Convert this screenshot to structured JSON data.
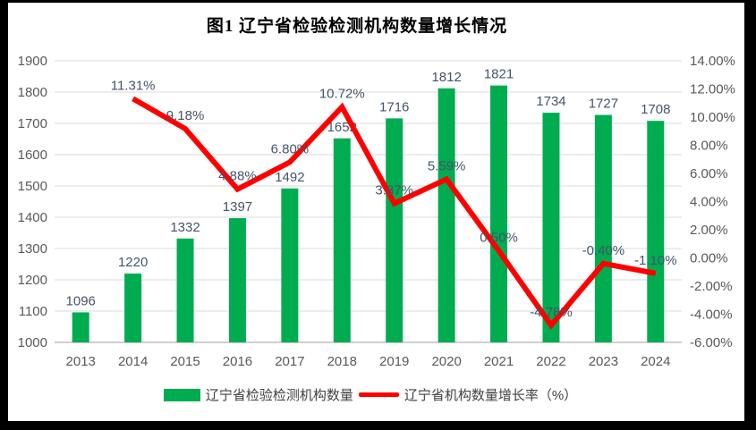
{
  "chart": {
    "title": "图1 辽宁省检验检测机构数量增长情况",
    "legend": [
      {
        "type": "bar",
        "label": "辽宁省检验检测机构数量",
        "color": "#00AC50"
      },
      {
        "type": "line",
        "label": "辽宁省机构数量增长率（%）",
        "color": "#FF0000"
      }
    ]
  },
  "chart_data": {
    "type": "bar",
    "subtype": "bar+line combo, dual axis",
    "title": "图1 辽宁省检验检测机构数量增长情况",
    "categories": [
      "2013",
      "2014",
      "2015",
      "2016",
      "2017",
      "2018",
      "2019",
      "2020",
      "2021",
      "2022",
      "2023",
      "2024"
    ],
    "series": [
      {
        "name": "辽宁省检验检测机构数量",
        "type": "bar",
        "axis": "left",
        "color": "#00AC50",
        "values": [
          1096,
          1220,
          1332,
          1397,
          1492,
          1652,
          1716,
          1812,
          1821,
          1734,
          1727,
          1708
        ],
        "labels": [
          "1096",
          "1220",
          "1332",
          "1397",
          "1492",
          "1652",
          "1716",
          "1812",
          "1821",
          "1734",
          "1727",
          "1708"
        ]
      },
      {
        "name": "辽宁省机构数量增长率（%）",
        "type": "line",
        "axis": "right",
        "color": "#FF0000",
        "values": [
          null,
          11.31,
          9.18,
          4.88,
          6.8,
          10.72,
          3.87,
          5.59,
          0.5,
          -4.78,
          -0.4,
          -1.1
        ],
        "labels": [
          null,
          "11.31%",
          "9.18%",
          "4.88%",
          "6.80%",
          "10.72%",
          "3.87%",
          "5.59%",
          "0.50%",
          "-4.78%",
          "-0.40%",
          "-1.10%"
        ]
      }
    ],
    "left_axis": {
      "min": 1000,
      "max": 1900,
      "step": 100,
      "ticks": [
        "1000",
        "1100",
        "1200",
        "1300",
        "1400",
        "1500",
        "1600",
        "1700",
        "1800",
        "1900"
      ]
    },
    "right_axis": {
      "min": -6,
      "max": 14,
      "step": 2,
      "ticks": [
        "-6.00%",
        "-4.00%",
        "-2.00%",
        "0.00%",
        "2.00%",
        "4.00%",
        "6.00%",
        "8.00%",
        "10.00%",
        "12.00%",
        "14.00%"
      ]
    },
    "grid": true,
    "gridline_color": "#D9D9D9",
    "axis_line_color": "#BFBFBF",
    "legend_position": "bottom"
  }
}
